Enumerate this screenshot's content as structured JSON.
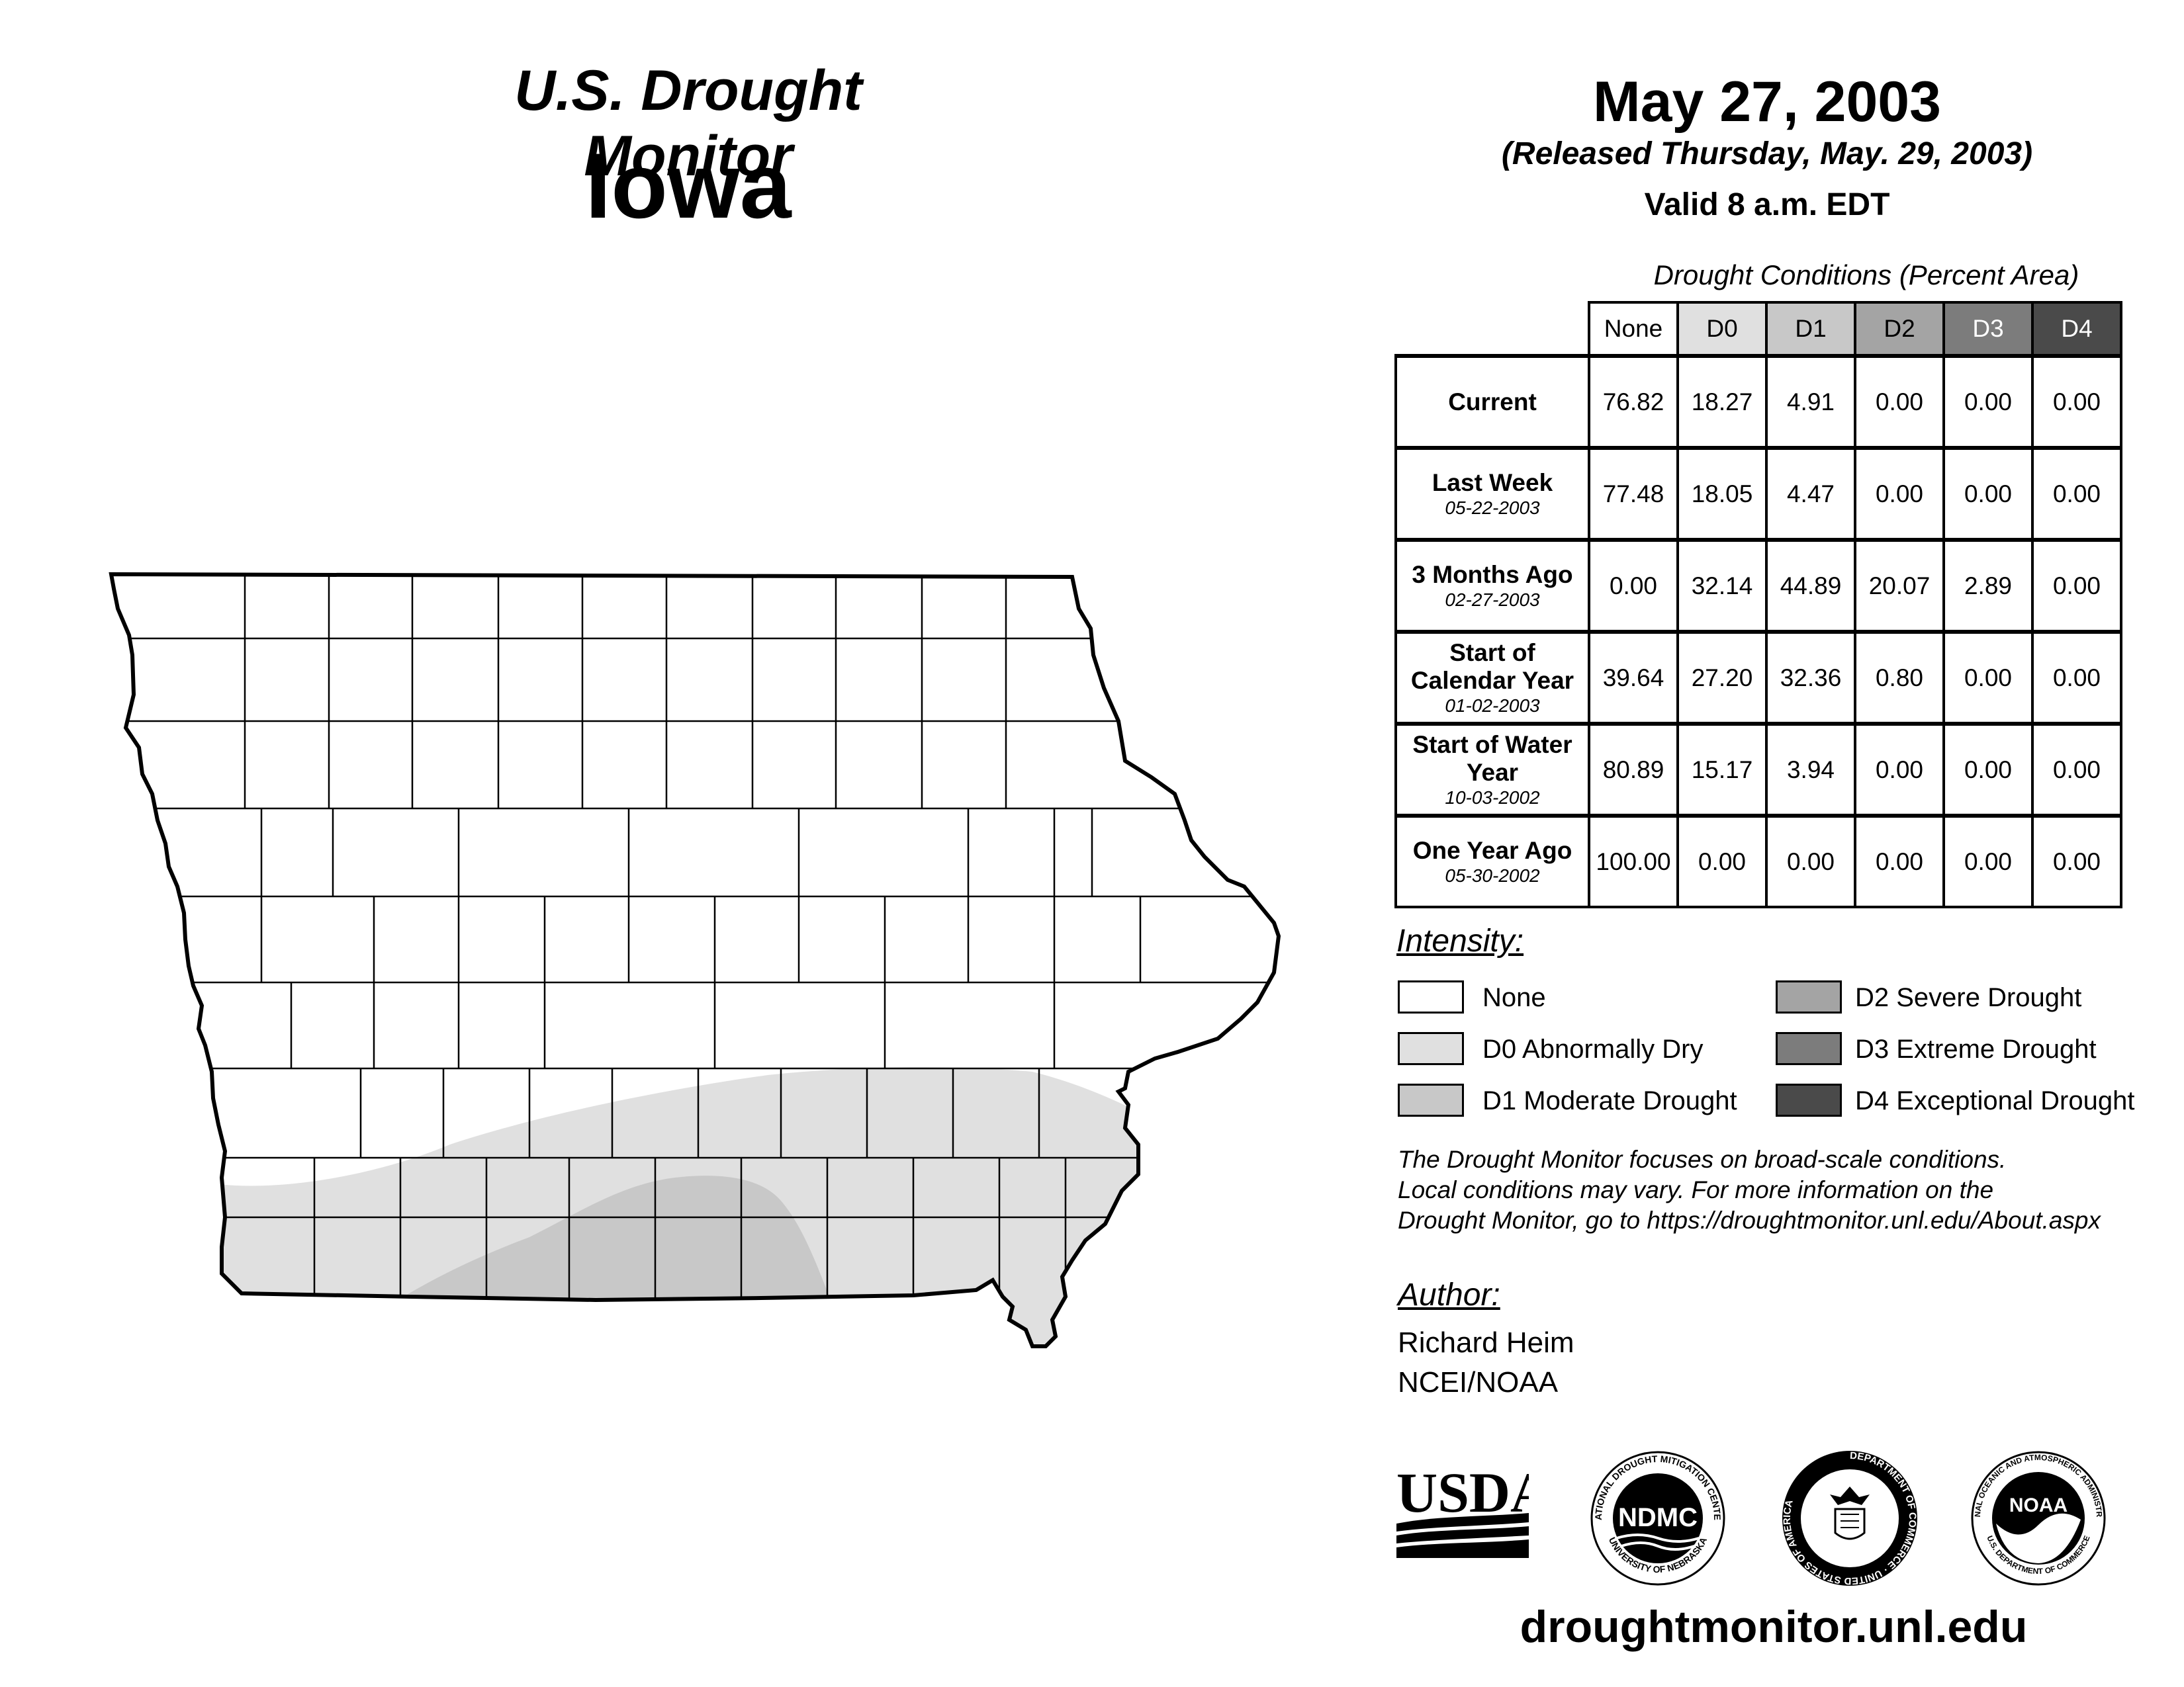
{
  "header": {
    "title": "U.S. Drought Monitor",
    "state": "Iowa",
    "date": "May 27, 2003",
    "released": "(Released Thursday, May. 29, 2003)",
    "valid": "Valid 8 a.m. EDT"
  },
  "table": {
    "caption": "Drought Conditions (Percent Area)",
    "columns": [
      "None",
      "D0",
      "D1",
      "D2",
      "D3",
      "D4"
    ],
    "rows": [
      {
        "label": "Current",
        "date": "",
        "values": [
          "76.82",
          "18.27",
          "4.91",
          "0.00",
          "0.00",
          "0.00"
        ]
      },
      {
        "label": "Last Week",
        "date": "05-22-2003",
        "values": [
          "77.48",
          "18.05",
          "4.47",
          "0.00",
          "0.00",
          "0.00"
        ]
      },
      {
        "label": "3 Months Ago",
        "date": "02-27-2003",
        "values": [
          "0.00",
          "32.14",
          "44.89",
          "20.07",
          "2.89",
          "0.00"
        ]
      },
      {
        "label": "Start of Calendar Year",
        "date": "01-02-2003",
        "values": [
          "39.64",
          "27.20",
          "32.36",
          "0.80",
          "0.00",
          "0.00"
        ]
      },
      {
        "label": "Start of Water Year",
        "date": "10-03-2002",
        "values": [
          "80.89",
          "15.17",
          "3.94",
          "0.00",
          "0.00",
          "0.00"
        ]
      },
      {
        "label": "One Year Ago",
        "date": "05-30-2002",
        "values": [
          "100.00",
          "0.00",
          "0.00",
          "0.00",
          "0.00",
          "0.00"
        ]
      }
    ]
  },
  "legend": {
    "title": "Intensity:",
    "items": [
      {
        "label": "None",
        "color": "#ffffff"
      },
      {
        "label": "D0 Abnormally Dry",
        "color": "#e0e0e0"
      },
      {
        "label": "D1 Moderate Drought",
        "color": "#c8c8c8"
      },
      {
        "label": "D2 Severe Drought",
        "color": "#a4a4a4"
      },
      {
        "label": "D3 Extreme Drought",
        "color": "#7c7c7c"
      },
      {
        "label": "D4 Exceptional Drought",
        "color": "#4a4a4a"
      }
    ]
  },
  "note": {
    "line1": "The Drought Monitor focuses on broad-scale conditions.",
    "line2": "Local conditions may vary. For more information on the",
    "line3": "Drought Monitor, go to https://droughtmonitor.unl.edu/About.aspx"
  },
  "author": {
    "heading": "Author:",
    "name": "Richard Heim",
    "org": "NCEI/NOAA"
  },
  "logos": {
    "usda": "USDA",
    "ndmc": "NDMC",
    "ndmc_ring_top": "NATIONAL DROUGHT MITIGATION CENTER",
    "ndmc_ring_bottom": "UNIVERSITY OF NEBRASKA",
    "doc_ring": "DEPARTMENT OF COMMERCE · UNITED STATES OF AMERICA",
    "noaa": "NOAA",
    "noaa_ring_top": "NATIONAL OCEANIC AND ATMOSPHERIC ADMINISTRATION",
    "noaa_ring_bottom": "U.S. DEPARTMENT OF COMMERCE"
  },
  "footer_url": "droughtmonitor.unl.edu",
  "map": {
    "d0_color": "#e0e0e0",
    "d1_color": "#c8c8c8"
  }
}
